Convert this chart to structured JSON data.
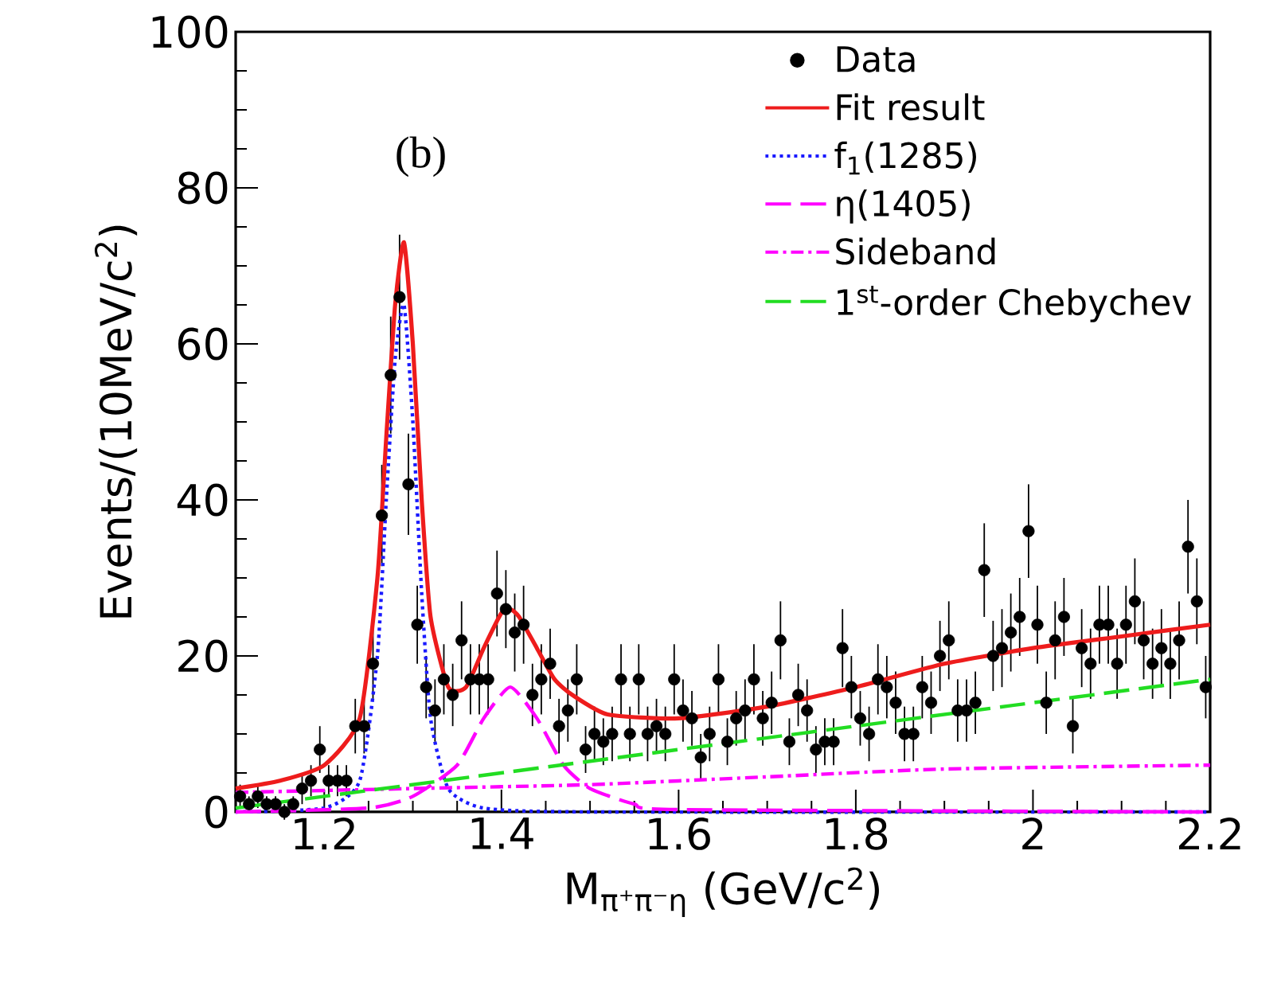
{
  "chart_data": {
    "type": "line",
    "xlabel": "M$_{π⁺π⁻η}$ (GeV/c$^{2}$)",
    "ylabel": "Events/(10MeV/c$^{2}$)",
    "annotations": [
      "(b)"
    ],
    "xlim": [
      1.1,
      2.2
    ],
    "ylim": [
      0,
      100
    ],
    "xticks": [
      1.2,
      1.4,
      1.6,
      1.8,
      2,
      2.2
    ],
    "yticks": [
      0,
      20,
      40,
      60,
      80,
      100
    ],
    "legend": "top right",
    "marker": "none",
    "series": [
      {
        "name": "Data",
        "type": "scatter",
        "marker": "circle",
        "color": "#000000",
        "x": [
          1.105,
          1.115,
          1.125,
          1.135,
          1.145,
          1.155,
          1.165,
          1.175,
          1.185,
          1.195,
          1.205,
          1.215,
          1.225,
          1.235,
          1.245,
          1.255,
          1.265,
          1.275,
          1.285,
          1.295,
          1.305,
          1.315,
          1.325,
          1.335,
          1.345,
          1.355,
          1.365,
          1.375,
          1.385,
          1.395,
          1.405,
          1.415,
          1.425,
          1.435,
          1.445,
          1.455,
          1.465,
          1.475,
          1.485,
          1.495,
          1.505,
          1.515,
          1.525,
          1.535,
          1.545,
          1.555,
          1.565,
          1.575,
          1.585,
          1.595,
          1.605,
          1.615,
          1.625,
          1.635,
          1.645,
          1.655,
          1.665,
          1.675,
          1.685,
          1.695,
          1.705,
          1.715,
          1.725,
          1.735,
          1.745,
          1.755,
          1.765,
          1.775,
          1.785,
          1.795,
          1.805,
          1.815,
          1.825,
          1.835,
          1.845,
          1.855,
          1.865,
          1.875,
          1.885,
          1.895,
          1.905,
          1.915,
          1.925,
          1.935,
          1.945,
          1.955,
          1.965,
          1.975,
          1.985,
          1.995,
          2.005,
          2.015,
          2.025,
          2.035,
          2.045,
          2.055,
          2.065,
          2.075,
          2.085,
          2.095,
          2.105,
          2.115,
          2.125,
          2.135,
          2.145,
          2.155,
          2.165,
          2.175,
          2.185,
          2.195
        ],
        "values": [
          2,
          1,
          2,
          1,
          1,
          0,
          1,
          3,
          4,
          8,
          4,
          4,
          4,
          11,
          11,
          19,
          38,
          56,
          66,
          42,
          24,
          16,
          13,
          17,
          15,
          22,
          17,
          17,
          17,
          28,
          26,
          23,
          24,
          15,
          17,
          19,
          11,
          13,
          17,
          8,
          10,
          9,
          10,
          17,
          10,
          17,
          10,
          11,
          10,
          17,
          13,
          12,
          7,
          10,
          17,
          9,
          12,
          13,
          17,
          12,
          14,
          22,
          9,
          15,
          13,
          8,
          9,
          9,
          21,
          16,
          12,
          10,
          17,
          16,
          14,
          10,
          10,
          16,
          14,
          20,
          22,
          13,
          13,
          14,
          31,
          20,
          21,
          23,
          25,
          36,
          24,
          14,
          22,
          25,
          11,
          21,
          19,
          24,
          24,
          19,
          24,
          27,
          22,
          19,
          21,
          19,
          22,
          34,
          27,
          16
        ],
        "errors": [
          1.5,
          1,
          1.5,
          1,
          1,
          1,
          1,
          2,
          2,
          3,
          2,
          2,
          2,
          3.5,
          3.5,
          4.5,
          6.5,
          7.5,
          8,
          6.5,
          5,
          4,
          4,
          4.5,
          4,
          5,
          4.5,
          4.5,
          4.5,
          5.5,
          5,
          5,
          5,
          4,
          4.5,
          4.5,
          3.5,
          4,
          4.5,
          3,
          3.5,
          3,
          3.5,
          4.5,
          3.5,
          4.5,
          3.5,
          3.5,
          3.5,
          4.5,
          4,
          3.5,
          3,
          3.5,
          4.5,
          3,
          3.5,
          4,
          4.5,
          3.5,
          4,
          5,
          3,
          4,
          4,
          3,
          3,
          3,
          5,
          4,
          3.5,
          3.5,
          4.5,
          4,
          4,
          3.5,
          3.5,
          4,
          4,
          4.5,
          5,
          4,
          4,
          4,
          6,
          4.5,
          5,
          5,
          5,
          6,
          5,
          4,
          5,
          5,
          3.5,
          5,
          4.5,
          5,
          5,
          4.5,
          5,
          5.5,
          5,
          4.5,
          5,
          4.5,
          5,
          6,
          5.5,
          4
        ]
      },
      {
        "name": "Fit result",
        "color": "#ee1c1c",
        "line_style": "solid",
        "x": [
          1.1,
          1.15,
          1.2,
          1.24,
          1.26,
          1.27,
          1.28,
          1.29,
          1.3,
          1.31,
          1.32,
          1.34,
          1.36,
          1.38,
          1.4,
          1.41,
          1.42,
          1.44,
          1.46,
          1.48,
          1.52,
          1.6,
          1.7,
          1.8,
          1.9,
          2.0,
          2.1,
          2.2
        ],
        "values": [
          3,
          4,
          6,
          12,
          30,
          48,
          65,
          73,
          60,
          40,
          25,
          16,
          16,
          21,
          25.5,
          26,
          25,
          21,
          17,
          15,
          12.5,
          12,
          13.5,
          16,
          19,
          21,
          22.5,
          24
        ]
      },
      {
        "name": "f$_{1}$(1285)",
        "color": "#1a1aff",
        "line_style": "dotted",
        "x": [
          1.1,
          1.2,
          1.24,
          1.26,
          1.27,
          1.28,
          1.29,
          1.3,
          1.31,
          1.32,
          1.34,
          1.38,
          1.5,
          2.2
        ],
        "values": [
          0,
          0.5,
          4,
          20,
          40,
          58,
          65,
          50,
          28,
          12,
          3,
          0.5,
          0,
          0
        ]
      },
      {
        "name": "η(1405)",
        "color": "#ff00ff",
        "line_style": "dashed",
        "x": [
          1.1,
          1.25,
          1.3,
          1.35,
          1.38,
          1.41,
          1.44,
          1.47,
          1.5,
          1.55,
          1.6,
          2.2
        ],
        "values": [
          0,
          0.5,
          2,
          6,
          12,
          16,
          12,
          6,
          3,
          1,
          0.3,
          0
        ]
      },
      {
        "name": "Sideband",
        "color": "#ff00ff",
        "line_style": "dashdot",
        "x": [
          1.1,
          1.3,
          1.5,
          1.7,
          1.9,
          2.2
        ],
        "values": [
          2.5,
          3,
          3.5,
          4.5,
          5.5,
          6
        ]
      },
      {
        "name": "1$^{st}$-order Chebychev",
        "color": "#22dd22",
        "line_style": "dashed",
        "x": [
          1.1,
          2.2
        ],
        "values": [
          0.5,
          17
        ]
      }
    ]
  }
}
